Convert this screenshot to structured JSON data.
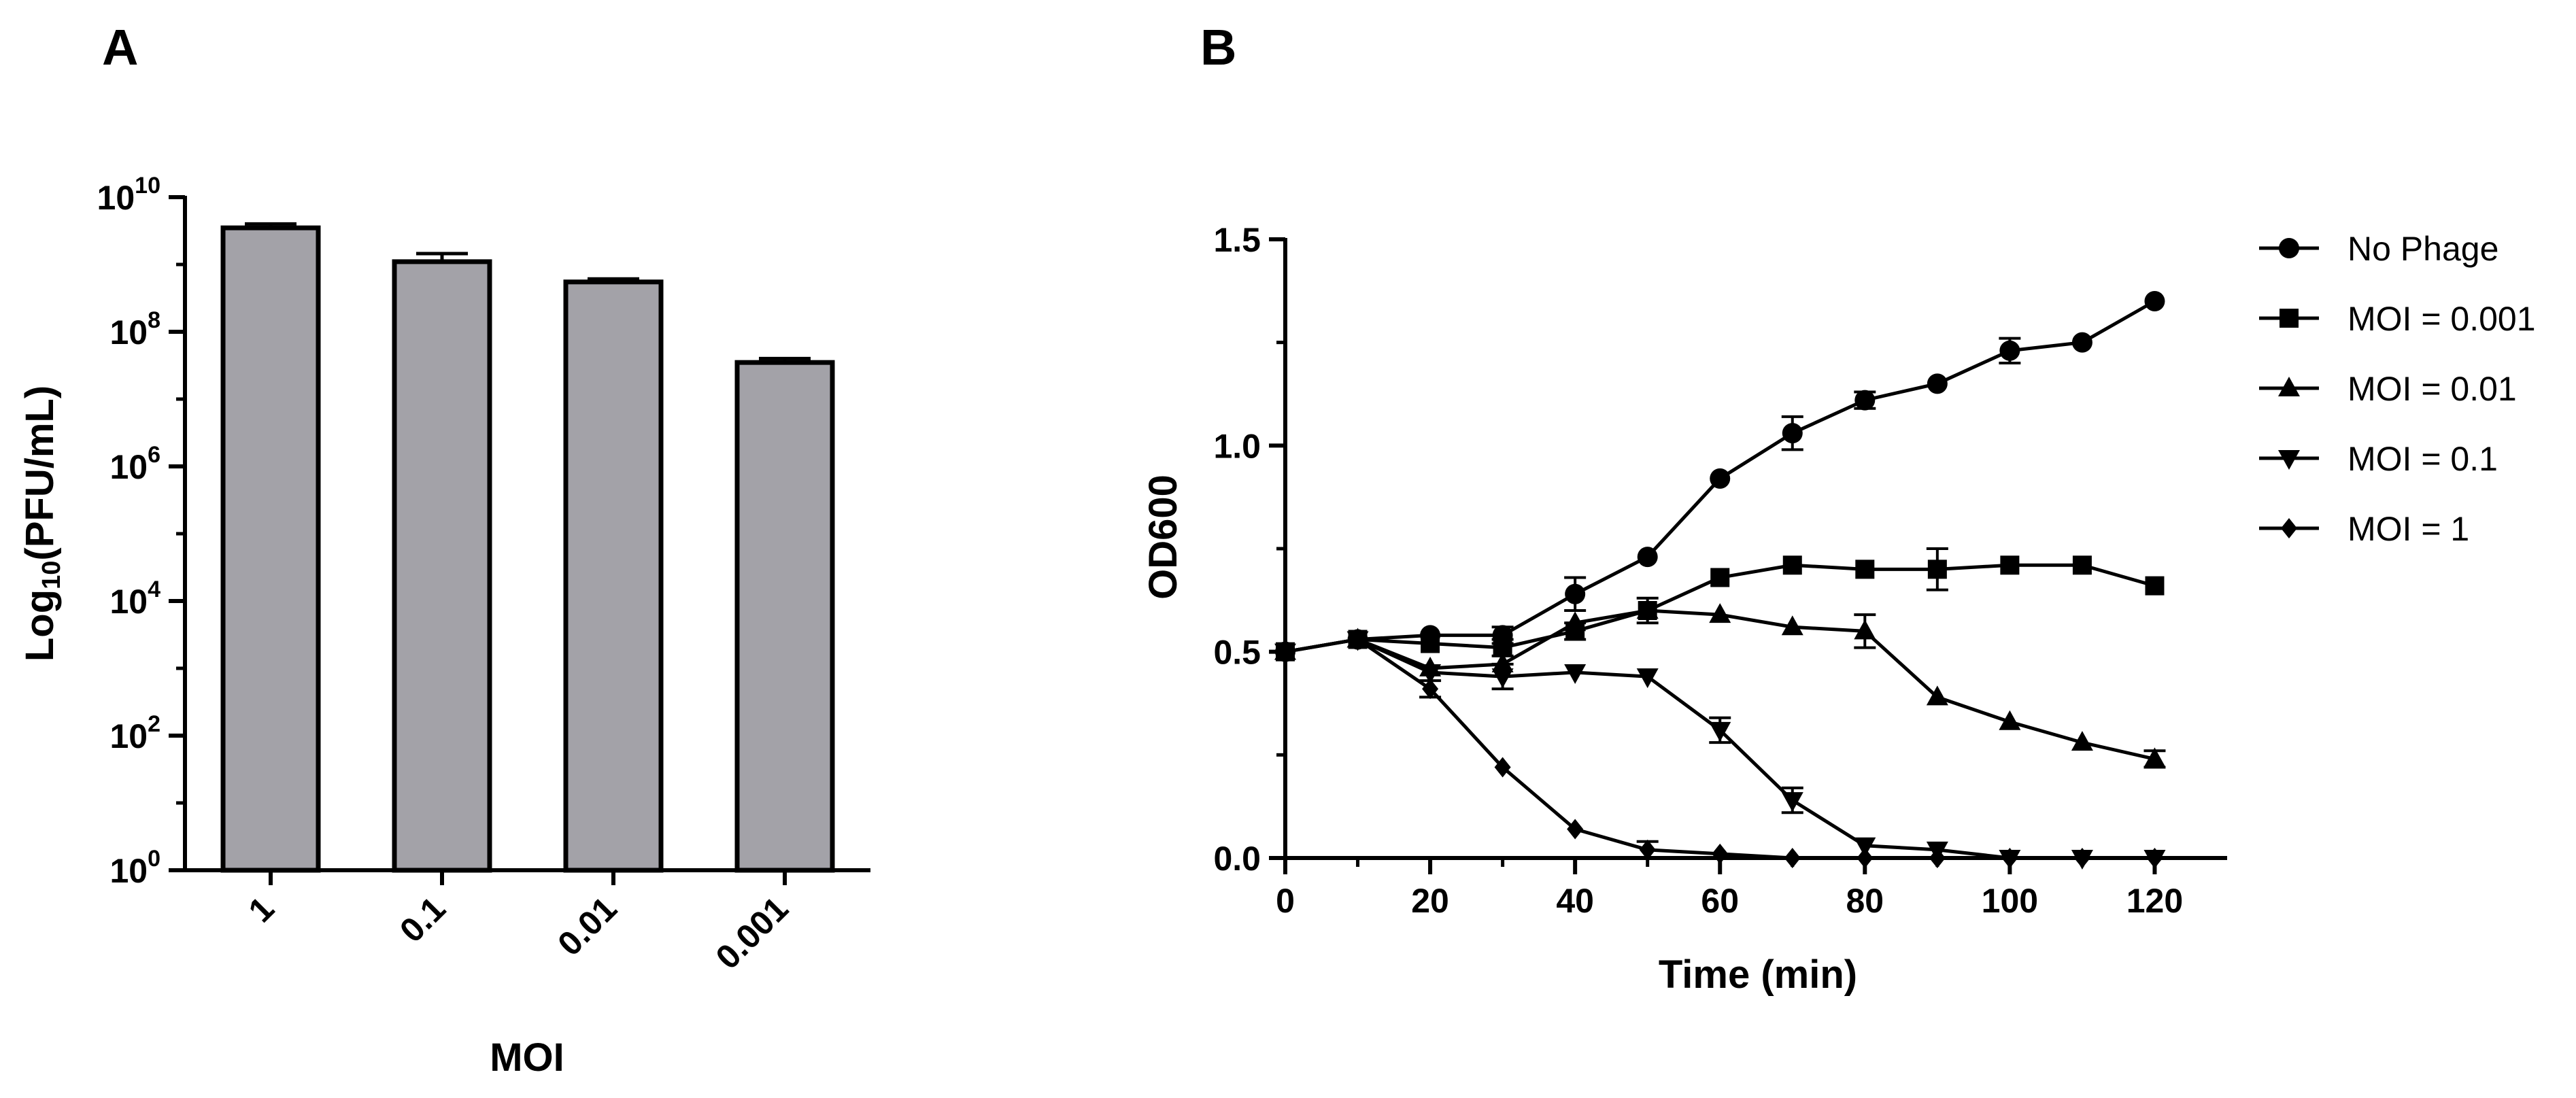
{
  "chart_data": [
    {
      "panel": "A",
      "type": "bar",
      "xlabel": "MOI",
      "ylabel_main": "Log",
      "ylabel_sub": "10",
      "ylabel_rest": "(PFU/mL)",
      "yscale": "log",
      "ylim": [
        1,
        10000000000
      ],
      "yticks": [
        {
          "base": "10",
          "exp": "0",
          "value": 1
        },
        {
          "base": "10",
          "exp": "2",
          "value": 100
        },
        {
          "base": "10",
          "exp": "4",
          "value": 10000
        },
        {
          "base": "10",
          "exp": "6",
          "value": 1000000
        },
        {
          "base": "10",
          "exp": "8",
          "value": 100000000
        },
        {
          "base": "10",
          "exp": "10",
          "value": 10000000000
        }
      ],
      "categories": [
        "1",
        "0.1",
        "0.01",
        "0.001"
      ],
      "values": [
        3500000000,
        1100000000,
        550000000,
        35000000
      ],
      "errors": [
        500000000,
        350000000,
        60000000,
        5000000
      ],
      "bar_color": "#a3a2a8"
    },
    {
      "panel": "B",
      "type": "line",
      "xlabel": "Time (min)",
      "ylabel": "OD600",
      "xlim": [
        0,
        130
      ],
      "ylim": [
        0,
        1.5
      ],
      "xticks": [
        "0",
        "20",
        "40",
        "60",
        "80",
        "100",
        "120"
      ],
      "yticks": [
        "0.0",
        "0.5",
        "1.0",
        "1.5"
      ],
      "x": [
        0,
        10,
        20,
        30,
        40,
        50,
        60,
        70,
        80,
        90,
        100,
        110,
        120
      ],
      "series": [
        {
          "name": "No Phage",
          "marker": "circle",
          "values": [
            0.5,
            0.53,
            0.54,
            0.54,
            0.64,
            0.73,
            0.92,
            1.03,
            1.11,
            1.15,
            1.23,
            1.25,
            1.35
          ],
          "errors": [
            0.01,
            0.01,
            0.01,
            0.02,
            0.04,
            0.01,
            0.01,
            0.04,
            0.02,
            0.01,
            0.03,
            0.01,
            0.01
          ]
        },
        {
          "name": "MOI = 0.001",
          "marker": "square",
          "values": [
            0.5,
            0.53,
            0.52,
            0.51,
            0.55,
            0.6,
            0.68,
            0.71,
            0.7,
            0.7,
            0.71,
            0.71,
            0.66
          ],
          "errors": [
            0.01,
            0.01,
            0.01,
            0.02,
            0.02,
            0.03,
            0.01,
            0.01,
            0.01,
            0.05,
            0.01,
            0.01,
            0.01
          ]
        },
        {
          "name": "MOI = 0.01",
          "marker": "triangle-up",
          "values": [
            0.5,
            0.53,
            0.46,
            0.47,
            0.57,
            0.6,
            0.59,
            0.56,
            0.55,
            0.39,
            0.33,
            0.28,
            0.24
          ],
          "errors": [
            0.01,
            0.01,
            0.01,
            0.01,
            0.01,
            0.01,
            0.01,
            0.01,
            0.04,
            0.01,
            0.01,
            0.01,
            0.02
          ]
        },
        {
          "name": "MOI = 0.1",
          "marker": "triangle-down",
          "values": [
            0.5,
            0.53,
            0.45,
            0.44,
            0.45,
            0.44,
            0.31,
            0.14,
            0.03,
            0.02,
            0.0,
            0.0,
            0.0
          ],
          "errors": [
            0.01,
            0.01,
            0.01,
            0.03,
            0.01,
            0.01,
            0.03,
            0.03,
            0.01,
            0.01,
            0.0,
            0.0,
            0.0
          ]
        },
        {
          "name": "MOI = 1",
          "marker": "diamond",
          "values": [
            0.5,
            0.53,
            0.41,
            0.22,
            0.07,
            0.02,
            0.01,
            0.0,
            0.0,
            0.0,
            0.0,
            0.0,
            0.0
          ],
          "errors": [
            0.01,
            0.01,
            0.02,
            0.01,
            0.01,
            0.02,
            0.01,
            0.0,
            0.0,
            0.0,
            0.0,
            0.0,
            0.0
          ]
        }
      ],
      "legend_position": "top-right"
    }
  ]
}
